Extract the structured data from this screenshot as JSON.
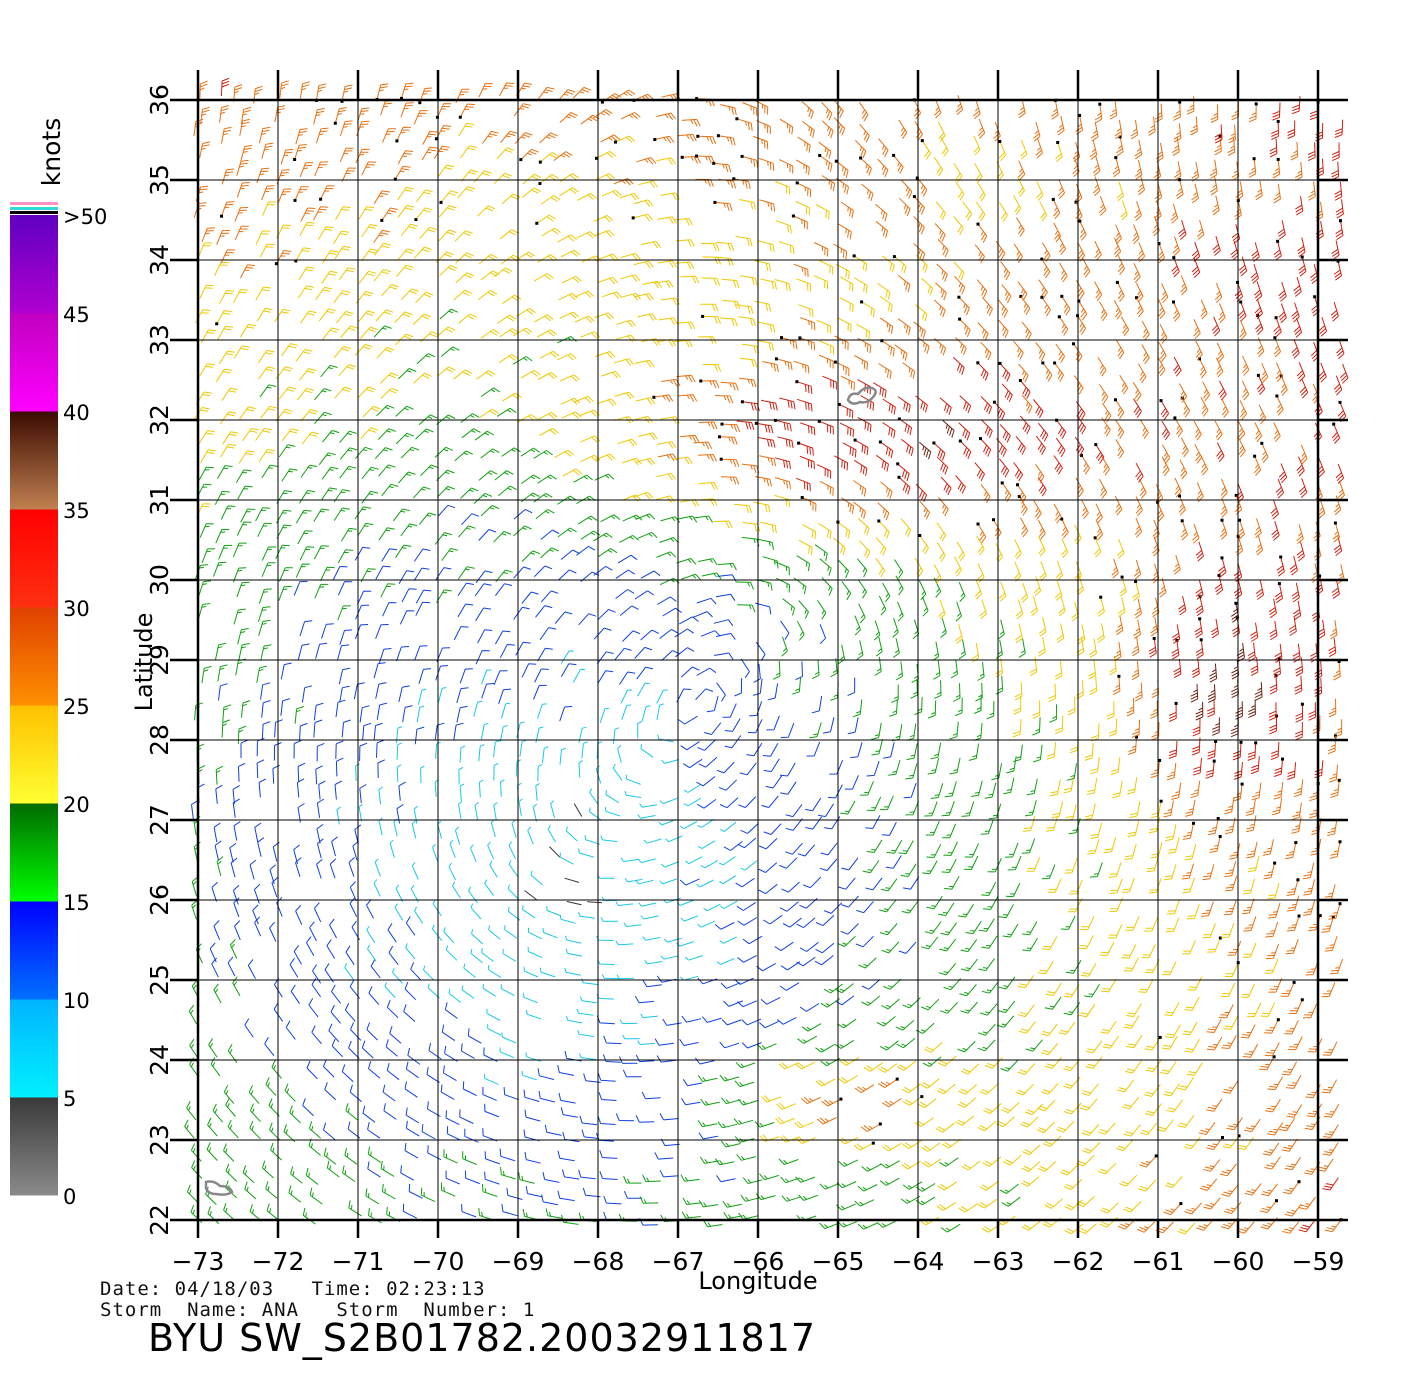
{
  "colorbar": {
    "title": "knots",
    "stops": [
      {
        "from": 0,
        "to": 5,
        "top": "#3a3a3a",
        "bottom": "#8a8a8a"
      },
      {
        "from": 5,
        "to": 10,
        "top": "#00b4ff",
        "bottom": "#00f0ff"
      },
      {
        "from": 10,
        "to": 15,
        "top": "#0000ff",
        "bottom": "#0070ff"
      },
      {
        "from": 15,
        "to": 20,
        "top": "#006a00",
        "bottom": "#00ff00"
      },
      {
        "from": 20,
        "to": 25,
        "top": "#ffc000",
        "bottom": "#ffff30"
      },
      {
        "from": 25,
        "to": 30,
        "top": "#e04000",
        "bottom": "#ff9000"
      },
      {
        "from": 30,
        "to": 35,
        "top": "#ff0000",
        "bottom": "#ff3010"
      },
      {
        "from": 35,
        "to": 40,
        "top": "#3a0a00",
        "bottom": "#c08050"
      },
      {
        "from": 40,
        "to": 45,
        "top": "#c000c0",
        "bottom": "#ff00ff"
      },
      {
        "from": 45,
        "to": 50,
        "top": "#6000c0",
        "bottom": "#b000d0"
      }
    ],
    "ticks": [
      "0",
      "5",
      "10",
      "15",
      "20",
      "25",
      "30",
      "35",
      "40",
      "45",
      ">50"
    ]
  },
  "map": {
    "xlabel": "Longitude",
    "ylabel": "Latitude",
    "lon_range": [
      -73,
      -59
    ],
    "lat_range": [
      22,
      36
    ],
    "lon_ticks": [
      "−73",
      "−72",
      "−71",
      "−70",
      "−69",
      "−68",
      "−67",
      "−66",
      "−65",
      "−64",
      "−63",
      "−62",
      "−61",
      "−60",
      "−59"
    ],
    "lat_ticks": [
      "22",
      "23",
      "24",
      "25",
      "26",
      "27",
      "28",
      "29",
      "30",
      "31",
      "32",
      "33",
      "34",
      "35",
      "36"
    ],
    "grid": true,
    "wind_field": {
      "cyclones": [
        {
          "name": "upper",
          "lon": -65.8,
          "lat": 29.6
        },
        {
          "name": "lower",
          "lon": -68.6,
          "lat": 26.3
        }
      ]
    },
    "land": [
      {
        "name": "bermuda",
        "lon": -64.7,
        "lat": 32.3
      },
      {
        "name": "bahamas",
        "lon": -72.9,
        "lat": 22.4
      }
    ]
  },
  "meta": {
    "date_line": "Date: 04/18/03   Time: 02:23:13",
    "storm_line": "Storm  Name: ANA   Storm  Number: 1",
    "filename": "BYU  SW_S2B01782.20032911817"
  }
}
